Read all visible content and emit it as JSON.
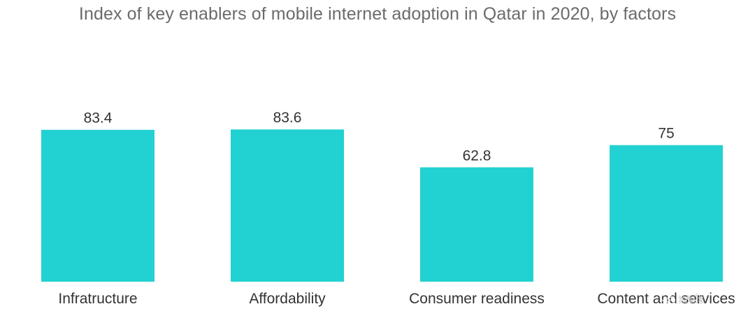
{
  "chart_data": {
    "type": "bar",
    "title": "Index of key enablers of mobile internet adoption in Qatar in 2020, by factors",
    "categories": [
      "Infratructure",
      "Affordability",
      "Consumer readiness",
      "Content and services"
    ],
    "values": [
      83.4,
      83.6,
      62.8,
      75
    ],
    "value_labels": [
      "83.4",
      "83.6",
      "62.8",
      "75"
    ],
    "ylim": [
      0,
      100
    ],
    "grid": false,
    "legend": "none",
    "bar_color": "#22d1d1"
  },
  "watermark": {
    "text": "xruis",
    "icon": "wechat-icon"
  }
}
